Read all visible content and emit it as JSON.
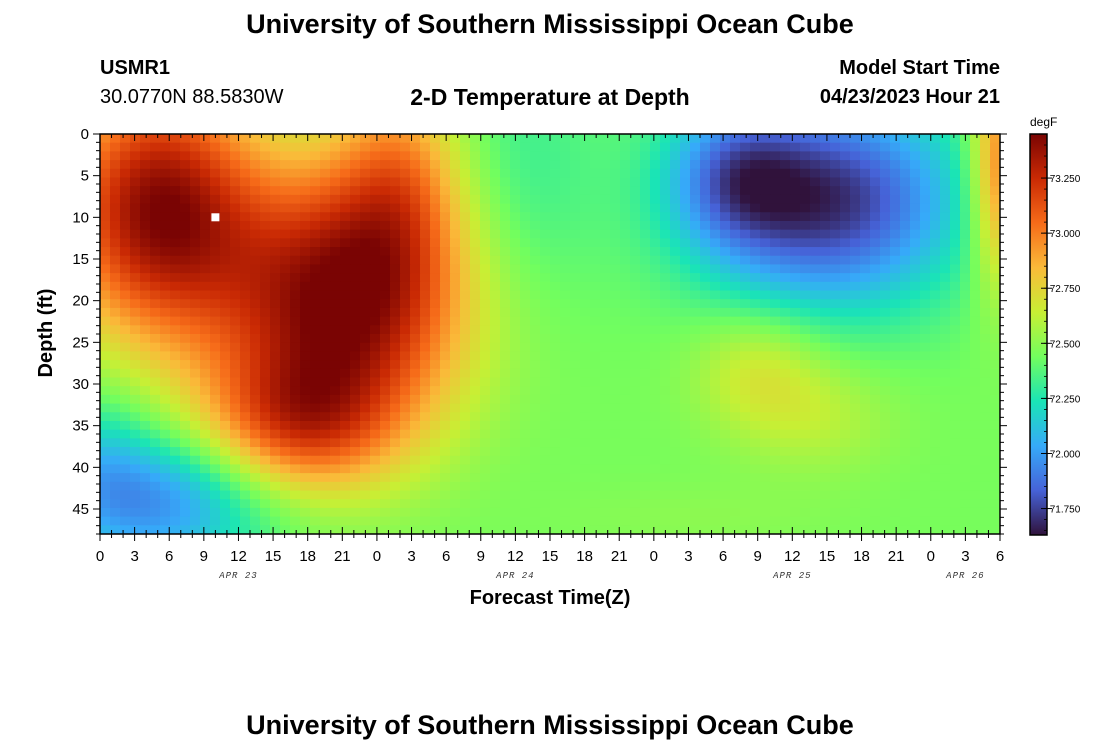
{
  "page": {
    "title": "University of Southern Mississippi Ocean Cube",
    "footer_title": "University of Southern Mississippi Ocean Cube",
    "station_id": "USMR1",
    "coordinates": "30.0770N  88.5830W",
    "plot_title": "2-D Temperature at Depth",
    "model_start_label": "Model Start Time",
    "model_start_value": "04/23/2023 Hour 21"
  },
  "chart_data": {
    "type": "heatmap",
    "xlabel": "Forecast Time(Z)",
    "ylabel": "Depth (ft)",
    "x_ticks": [
      "0",
      "3",
      "6",
      "9",
      "12",
      "15",
      "18",
      "21",
      "0",
      "3",
      "6",
      "9",
      "12",
      "15",
      "18",
      "21",
      "0",
      "3",
      "6",
      "9",
      "12",
      "15",
      "18",
      "21",
      "0",
      "3",
      "6"
    ],
    "x_range_hours": [
      0,
      78
    ],
    "date_labels": [
      {
        "text": "APR 23",
        "hour": 12
      },
      {
        "text": "APR 24",
        "hour": 36
      },
      {
        "text": "APR 25",
        "hour": 60
      },
      {
        "text": "APR 26",
        "hour": 75
      }
    ],
    "y_ticks": [
      "0",
      "5",
      "10",
      "15",
      "20",
      "25",
      "30",
      "35",
      "40",
      "45"
    ],
    "y_range_ft": [
      0,
      48
    ],
    "colorbar": {
      "unit": "degF",
      "min": 71.63,
      "max": 73.45,
      "labels": [
        "73.250",
        "73.000",
        "72.750",
        "72.500",
        "72.250",
        "72.000",
        "71.750"
      ],
      "label_values": [
        73.25,
        73.0,
        72.75,
        72.5,
        72.25,
        72.0,
        71.75
      ],
      "colormap": [
        "#30123b",
        "#4662d7",
        "#36aaf9",
        "#1ae4b6",
        "#72fe5e",
        "#c8ef34",
        "#faba39",
        "#f66b19",
        "#ca2a04",
        "#7a0403"
      ]
    },
    "background_value": 72.45,
    "features": [
      {
        "hour": 5,
        "depth": 9,
        "sigma_h": 6,
        "sigma_d": 11,
        "amp": 0.95
      },
      {
        "hour": 21,
        "depth": 20,
        "sigma_h": 7.5,
        "sigma_d": 11,
        "amp": 1.0
      },
      {
        "hour": 17,
        "depth": 35,
        "sigma_h": 6,
        "sigma_d": 6,
        "amp": 0.55
      },
      {
        "hour": 26,
        "depth": 5,
        "sigma_h": 4,
        "sigma_d": 9,
        "amp": 0.4
      },
      {
        "hour": 5,
        "depth": 44,
        "sigma_h": 7,
        "sigma_d": 6,
        "amp": -0.5
      },
      {
        "hour": 0,
        "depth": 38,
        "sigma_h": 3,
        "sigma_d": 6,
        "amp": -0.15
      },
      {
        "hour": 36,
        "depth": 5,
        "sigma_h": 5,
        "sigma_d": 12,
        "amp": -0.15
      },
      {
        "hour": 63,
        "depth": 8,
        "sigma_h": 8,
        "sigma_d": 9,
        "amp": -0.75
      },
      {
        "hour": 55,
        "depth": 5,
        "sigma_h": 4,
        "sigma_d": 6,
        "amp": -0.35
      },
      {
        "hour": 57,
        "depth": 28,
        "sigma_h": 4,
        "sigma_d": 5,
        "amp": 0.22
      },
      {
        "hour": 62,
        "depth": 34,
        "sigma_h": 5,
        "sigma_d": 5,
        "amp": 0.15
      },
      {
        "hour": 78,
        "depth": 4,
        "sigma_h": 1.8,
        "sigma_d": 10,
        "amp": 0.6
      },
      {
        "hour": 52,
        "depth": 46,
        "sigma_h": 8,
        "sigma_d": 3,
        "amp": 0.05
      }
    ],
    "marker": {
      "hour": 10,
      "depth": 10
    }
  }
}
